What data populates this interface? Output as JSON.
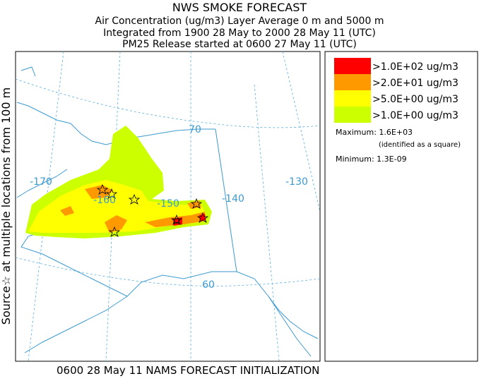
{
  "header": {
    "title": "NWS SMOKE FORECAST",
    "lines": [
      "Air Concentration (ug/m3) Layer Average    0 m and  5000 m",
      "Integrated from 1900 28 May to 2000 28 May 11 (UTC)",
      "PM25 Release started at 0600 27 May 11 (UTC)"
    ]
  },
  "side_label": "Source☆ at multiple locations from 100 m",
  "map_labels": {
    "longitudes": [
      "-170",
      "-160",
      "-150",
      "-140",
      "-130"
    ],
    "latitudes": [
      "70",
      "60"
    ]
  },
  "legend": {
    "items": [
      {
        "label": ">1.0E+02 ug/m3",
        "color": "#ff0000"
      },
      {
        "label": ">2.0E+01 ug/m3",
        "color": "#ff9900"
      },
      {
        "label": ">5.0E+00 ug/m3",
        "color": "#ffff00"
      },
      {
        "label": ">1.0E+00 ug/m3",
        "color": "#ccff00"
      }
    ],
    "maximum": "Maximum: 1.6E+03",
    "maximum_note": "(identified as a square)",
    "minimum": "Minimum: 1.3E-09"
  },
  "footer": "0600 28 May 11 NAMS FORECAST INITIALIZATION"
}
